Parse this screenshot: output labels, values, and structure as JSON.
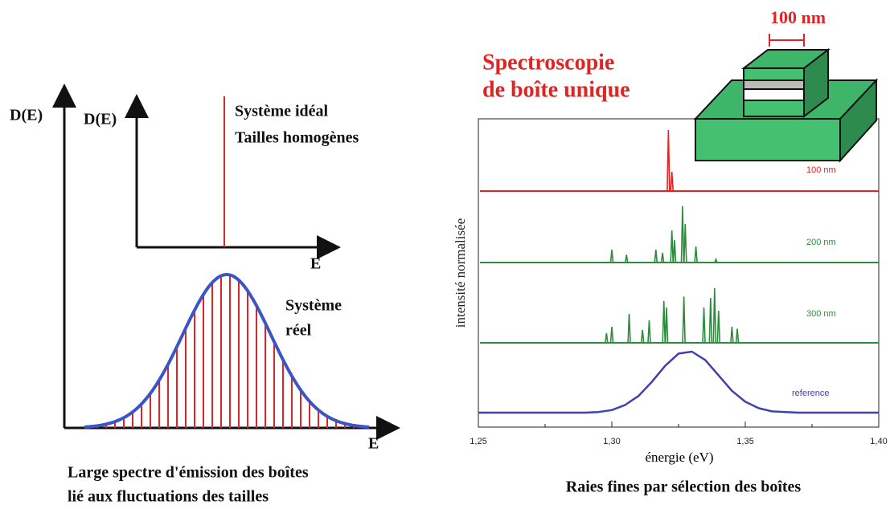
{
  "left_panel": {
    "big_axis_y": "D(E)",
    "big_axis_x": "E",
    "inset_axis_y": "D(E)",
    "inset_axis_x": "E",
    "ideal_label": [
      "Système idéal",
      "Tailles homogènes"
    ],
    "real_label": [
      "Système",
      "réel"
    ],
    "caption": [
      "Large spectre d'émission des boîtes",
      "lié aux fluctuations des tailles"
    ]
  },
  "right_panel": {
    "title": [
      "Spectroscopie",
      "de boîte unique"
    ],
    "scale_label": "100 nm",
    "y_label": "intensité normalisée",
    "x_label": "énergie (eV)",
    "xlim": [
      1.25,
      1.4
    ],
    "xticks": [
      {
        "value": 1.25,
        "label": "1,25"
      },
      {
        "value": 1.3,
        "label": "1,30"
      },
      {
        "value": 1.35,
        "label": "1,35"
      },
      {
        "value": 1.4,
        "label": "1,40"
      }
    ],
    "minor_xticks": [
      1.275,
      1.325,
      1.375
    ],
    "traces": [
      {
        "name": "100 nm",
        "color": "#e02424",
        "kind": "peaks",
        "x": [
          1.3212,
          1.3225
        ],
        "values": [
          0.95,
          0.3
        ]
      },
      {
        "name": "200 nm",
        "color": "#2e8b3e",
        "kind": "peaks",
        "x": [
          1.3,
          1.3055,
          1.3165,
          1.319,
          1.3225,
          1.3235,
          1.3265,
          1.3275,
          1.3315,
          1.339
        ],
        "values": [
          0.2,
          0.12,
          0.2,
          0.15,
          0.5,
          0.35,
          0.88,
          0.6,
          0.25,
          0.05
        ]
      },
      {
        "name": "300 nm",
        "color": "#2e8b3e",
        "kind": "peaks",
        "x": [
          1.298,
          1.3,
          1.3065,
          1.3115,
          1.314,
          1.3195,
          1.3205,
          1.327,
          1.3345,
          1.337,
          1.3385,
          1.34,
          1.345,
          1.347
        ],
        "values": [
          0.15,
          0.25,
          0.45,
          0.2,
          0.35,
          0.65,
          0.55,
          0.72,
          0.55,
          0.7,
          0.85,
          0.5,
          0.25,
          0.22
        ]
      },
      {
        "name": "reference",
        "color": "#4040b0",
        "kind": "curve",
        "x": [
          1.25,
          1.255,
          1.26,
          1.265,
          1.27,
          1.275,
          1.28,
          1.285,
          1.29,
          1.295,
          1.3,
          1.305,
          1.31,
          1.315,
          1.32,
          1.325,
          1.33,
          1.335,
          1.34,
          1.345,
          1.35,
          1.355,
          1.36,
          1.365,
          1.37,
          1.375,
          1.38,
          1.385,
          1.39,
          1.395,
          1.4
        ],
        "values": [
          0,
          0,
          0,
          0,
          0,
          0,
          0,
          0,
          0,
          0.01,
          0.04,
          0.12,
          0.26,
          0.48,
          0.73,
          0.92,
          0.95,
          0.82,
          0.58,
          0.34,
          0.17,
          0.07,
          0.02,
          0.01,
          0,
          0,
          0,
          0,
          0,
          0,
          0
        ]
      }
    ],
    "caption": "Raies fines par sélection des boîtes"
  }
}
